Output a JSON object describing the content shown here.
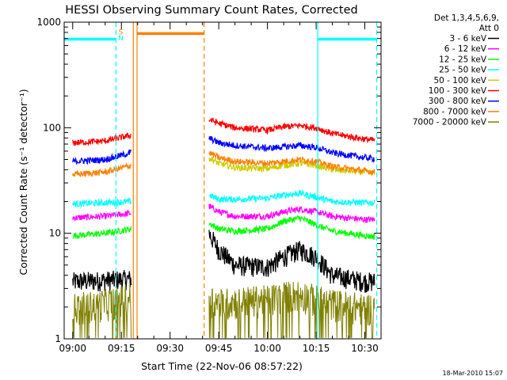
{
  "chart_data": {
    "type": "line",
    "title": "HESSI Observing Summary Count Rates, Corrected",
    "xlabel": "Start Time (22-Nov-06 08:57:22)",
    "ylabel": "Corrected Count Rate (s⁻¹ detector⁻¹)",
    "y_scale": "log",
    "ylim": [
      1,
      1000
    ],
    "xlim": [
      "08:57:22",
      "10:35:00"
    ],
    "x_ticks": [
      "09:00",
      "09:15",
      "09:30",
      "09:45",
      "10:00",
      "10:15",
      "10:30"
    ],
    "y_ticks": [
      "1",
      "10",
      "100",
      "1000"
    ],
    "legend": {
      "position": "top-right",
      "header_line1": "Det 1,3,4,5,6,9,",
      "header_line2": "Att 0"
    },
    "series": [
      {
        "name": "3 - 6 keV",
        "color": "#000000",
        "x": [
          "09:00",
          "09:10",
          "09:18",
          "09:42",
          "09:45",
          "09:50",
          "10:00",
          "10:05",
          "10:10",
          "10:15",
          "10:20",
          "10:30",
          "10:33"
        ],
        "values": [
          3.5,
          3.6,
          3.7,
          10.0,
          7.0,
          5.0,
          4.8,
          6.0,
          7.0,
          6.0,
          4.0,
          3.5,
          3.5
        ]
      },
      {
        "name": "6 - 12 keV",
        "color": "#ff00ff",
        "x": [
          "09:00",
          "09:10",
          "09:18",
          "09:42",
          "09:45",
          "09:50",
          "10:00",
          "10:05",
          "10:10",
          "10:15",
          "10:20",
          "10:30",
          "10:33"
        ],
        "values": [
          14,
          14.5,
          15.5,
          18,
          16,
          14.5,
          14.5,
          16,
          17,
          16,
          14.5,
          13.5,
          13.5
        ]
      },
      {
        "name": "12 - 25 keV",
        "color": "#00ff00",
        "x": [
          "09:00",
          "09:10",
          "09:18",
          "09:42",
          "09:45",
          "09:50",
          "10:00",
          "10:05",
          "10:10",
          "10:15",
          "10:20",
          "10:30",
          "10:33"
        ],
        "values": [
          9.5,
          10,
          11,
          12.5,
          11,
          10.5,
          11,
          13,
          14,
          12,
          10.5,
          9.5,
          9.3
        ]
      },
      {
        "name": "25 - 50 keV",
        "color": "#00ffff",
        "x": [
          "09:00",
          "09:10",
          "09:18",
          "09:42",
          "09:45",
          "09:50",
          "10:00",
          "10:05",
          "10:10",
          "10:15",
          "10:20",
          "10:30",
          "10:33"
        ],
        "values": [
          19,
          19.5,
          20,
          23,
          21,
          21,
          21.5,
          23,
          24,
          22,
          20,
          19.5,
          19.5
        ]
      },
      {
        "name": "50 - 100 keV",
        "color": "#cccc00",
        "x": [
          "09:42",
          "09:45",
          "09:50",
          "10:00",
          "10:05",
          "10:10",
          "10:15",
          "10:20",
          "10:30",
          "10:33"
        ],
        "values": [
          52,
          46,
          42,
          41,
          44,
          46,
          44,
          40,
          38,
          37
        ]
      },
      {
        "name": "100 - 300 keV",
        "color": "#ff0000",
        "x": [
          "09:00",
          "09:10",
          "09:18",
          "09:42",
          "09:45",
          "09:50",
          "10:00",
          "10:05",
          "10:10",
          "10:15",
          "10:20",
          "10:30",
          "10:33"
        ],
        "values": [
          72,
          75,
          85,
          120,
          110,
          100,
          95,
          102,
          105,
          100,
          88,
          78,
          76
        ]
      },
      {
        "name": "300 - 800 keV",
        "color": "#0000ff",
        "x": [
          "09:00",
          "09:10",
          "09:18",
          "09:42",
          "09:45",
          "09:50",
          "10:00",
          "10:05",
          "10:10",
          "10:15",
          "10:20",
          "10:30",
          "10:33"
        ],
        "values": [
          48,
          50,
          58,
          80,
          72,
          68,
          64,
          66,
          68,
          65,
          58,
          52,
          51
        ]
      },
      {
        "name": "800 - 7000 keV",
        "color": "#ff8000",
        "x": [
          "09:00",
          "09:10",
          "09:18",
          "09:42",
          "09:45",
          "09:50",
          "10:00",
          "10:05",
          "10:10",
          "10:15",
          "10:20",
          "10:30",
          "10:33"
        ],
        "values": [
          36,
          38,
          44,
          58,
          52,
          48,
          46,
          48,
          50,
          48,
          43,
          39,
          38
        ]
      },
      {
        "name": "7000 - 20000 keV",
        "color": "#808000",
        "x": [
          "09:00",
          "09:10",
          "09:18",
          "09:42",
          "09:45",
          "09:50",
          "10:00",
          "10:05",
          "10:10",
          "10:15",
          "10:20",
          "10:30",
          "10:33"
        ],
        "values": [
          2,
          2.2,
          2.5,
          2.5,
          2.2,
          2.3,
          2.4,
          2.6,
          2.7,
          2.4,
          2.2,
          2.0,
          2.0
        ]
      }
    ],
    "annotations": [
      {
        "text": "S",
        "color": "#ff8000",
        "x": "09:18",
        "y": 820
      },
      {
        "text": "N",
        "color": "#00ffff",
        "x": "09:18",
        "y": 720
      }
    ],
    "flag_bars": [
      {
        "color": "#00ffff",
        "from": "08:57:22",
        "to": "09:13:20",
        "y": 690
      },
      {
        "color": "#00ffff",
        "from": "10:15:30",
        "to": "10:33:40",
        "y": 690
      },
      {
        "color": "#ff8000",
        "from": "09:19:50",
        "to": "09:40:30",
        "y": 780
      }
    ],
    "vlines": [
      {
        "color": "#00ffff",
        "x": "09:13:20",
        "style": "dashed"
      },
      {
        "color": "#00ffff",
        "x": "10:15:30",
        "style": "solid"
      },
      {
        "color": "#00ffff",
        "x": "10:33:40",
        "style": "dashed"
      },
      {
        "color": "#ff8000",
        "x": "09:18:40",
        "style": "solid"
      },
      {
        "color": "#ff8000",
        "x": "09:19:50",
        "style": "solid"
      },
      {
        "color": "#ff8000",
        "x": "09:40:30",
        "style": "dashed"
      }
    ],
    "data_gap": [
      "09:18:40",
      "09:41:30"
    ]
  },
  "footer": {
    "stamp": "18-Mar-2010 15:07"
  }
}
